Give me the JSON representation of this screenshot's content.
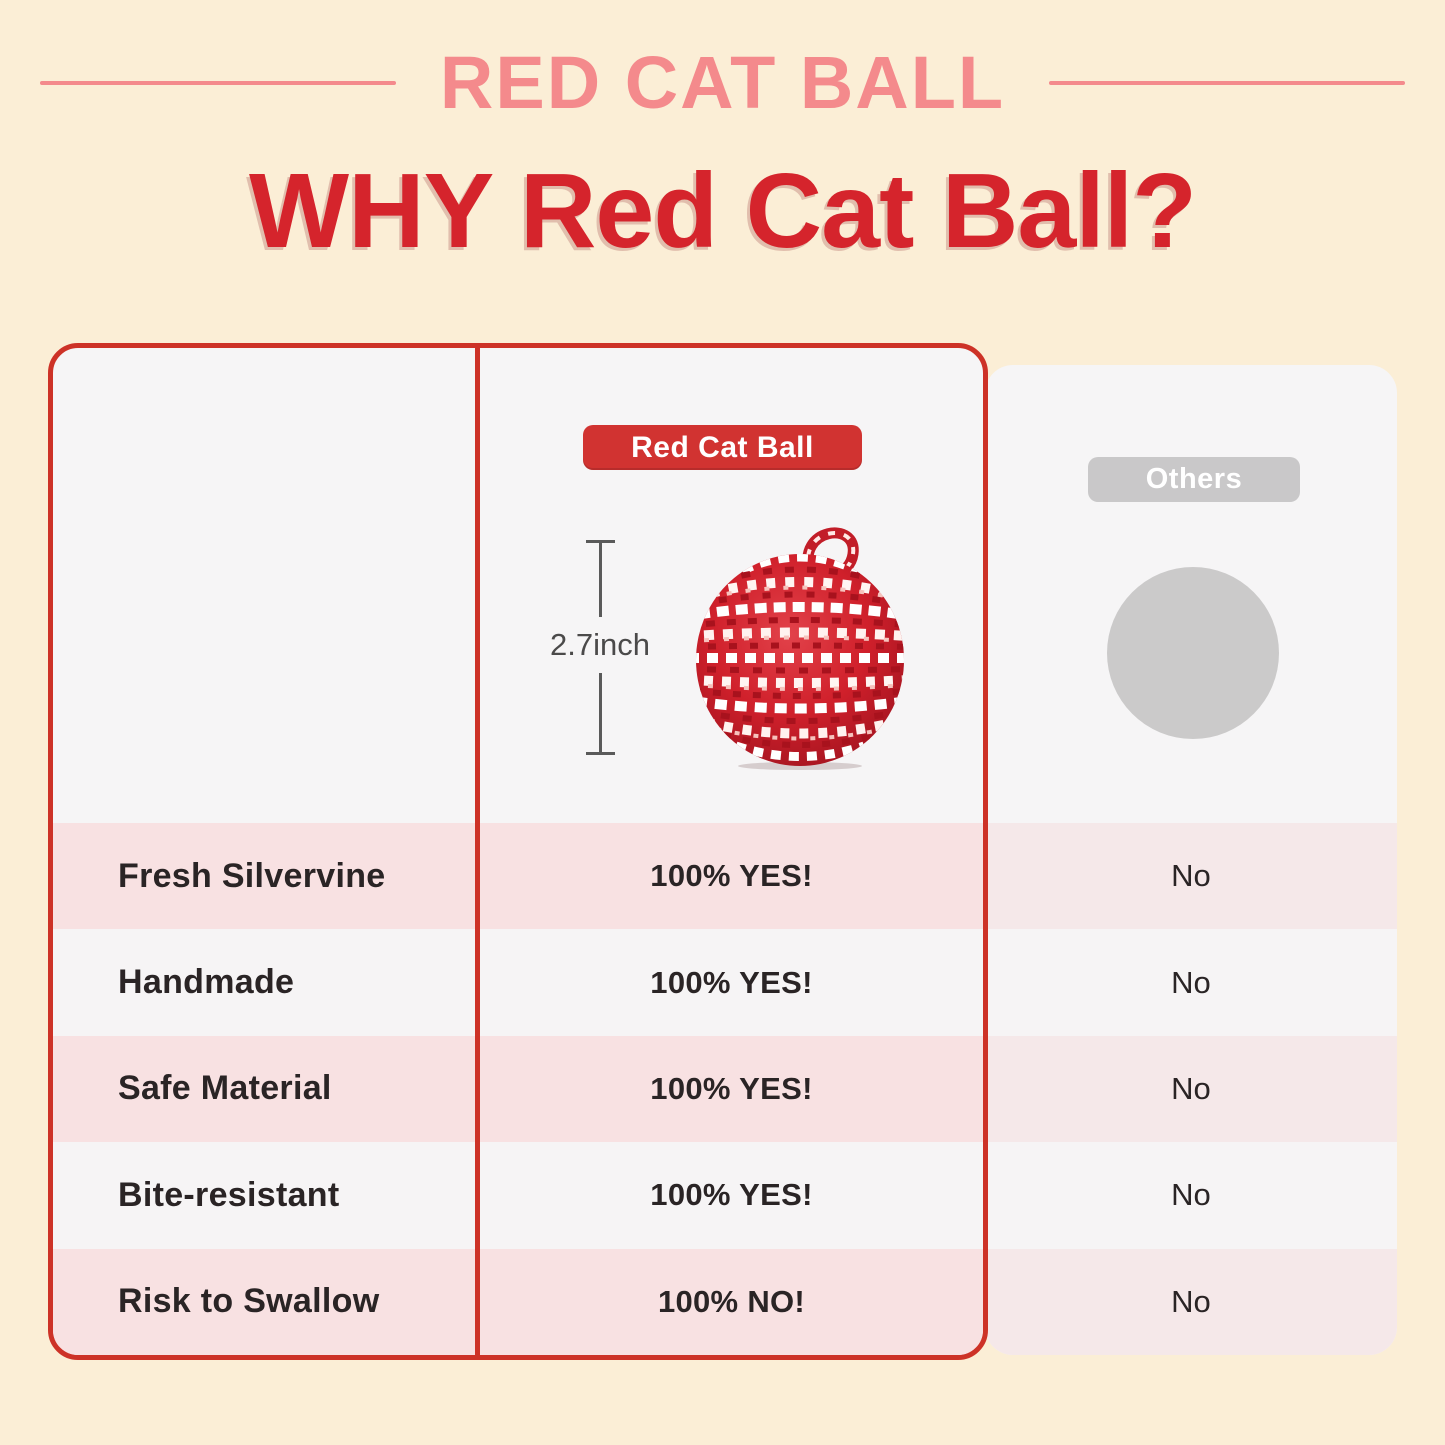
{
  "page": {
    "eyebrow": "RED CAT BALL",
    "title": "WHY Red Cat Ball?"
  },
  "comparison": {
    "product_badge": "Red Cat Ball",
    "others_badge": "Others",
    "size_label": "2.7inch",
    "rows": [
      {
        "feature": "Fresh Silvervine",
        "product": "100% YES!",
        "others": "No"
      },
      {
        "feature": "Handmade",
        "product": "100% YES!",
        "others": "No"
      },
      {
        "feature": "Safe Material",
        "product": "100% YES!",
        "others": "No"
      },
      {
        "feature": "Bite-resistant",
        "product": "100% YES!",
        "others": "No"
      },
      {
        "feature": "Risk to Swallow",
        "product": "100% NO!",
        "others": "No"
      }
    ]
  },
  "colors": {
    "bg_cream": "#fbeed6",
    "accent_red": "#cd3227",
    "badge_red": "#d13331",
    "title_red": "#d5242c",
    "salmon_pink": "#f48a8c",
    "panel_bg": "#f6f5f6",
    "stripe_pink": "#f8e1e2",
    "stripe_pink_light": "#f5e8e9",
    "stripe_white": "#f6f4f5",
    "badge_gray": "#c9c8c9",
    "circle_gray": "#cbcaca",
    "text_dark": "#2a2425",
    "measure_gray": "#4b4a4a"
  }
}
